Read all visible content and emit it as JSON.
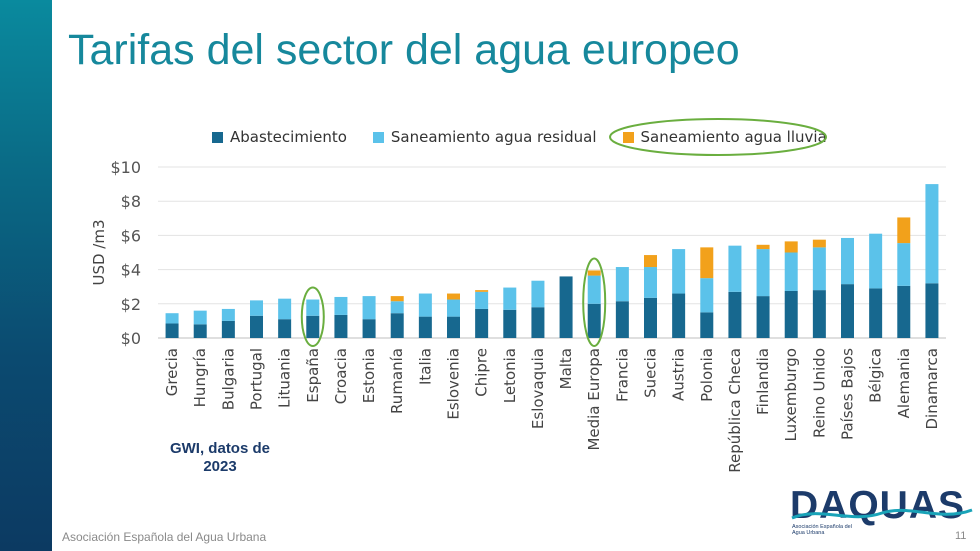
{
  "slide": {
    "title": "Tarifas del sector del agua europeo",
    "source_note": "GWI, datos de 2023",
    "footer": "Asociación Española del Agua Urbana",
    "page_number": "11",
    "logo": {
      "wordmark": "DAQUAS",
      "subtitle": "Asociación Española del Agua Urbana"
    }
  },
  "colors": {
    "abastecimiento": "#17688f",
    "residual": "#5bc2ea",
    "lluvia": "#f2a11b",
    "highlight": "#6aae3f"
  },
  "chart_data": {
    "type": "bar",
    "stacked": true,
    "title": "",
    "xlabel": "",
    "ylabel": "USD /m3",
    "ylim": [
      0,
      10
    ],
    "yticks": [
      0,
      2,
      4,
      6,
      8,
      10
    ],
    "ytick_labels": [
      "$0",
      "$2",
      "$4",
      "$6",
      "$8",
      "$10"
    ],
    "grid": true,
    "legend_position": "top",
    "categories": [
      "Grecia",
      "Hungría",
      "Bulgaria",
      "Portugal",
      "Lituania",
      "España",
      "Croacia",
      "Estonia",
      "Rumanía",
      "Italia",
      "Eslovenia",
      "Chipre",
      "Letonia",
      "Eslovaquia",
      "Malta",
      "Media Europa",
      "Francia",
      "Suecia",
      "Austria",
      "Polonia",
      "República Checa",
      "Finlandia",
      "Luxemburgo",
      "Reino Unido",
      "Países Bajos",
      "Bélgica",
      "Alemania",
      "Dinamarca"
    ],
    "series": [
      {
        "name": "Abastecimiento",
        "values": [
          0.85,
          0.8,
          1.0,
          1.3,
          1.1,
          1.3,
          1.35,
          1.1,
          1.45,
          1.25,
          1.25,
          1.7,
          1.65,
          1.8,
          3.6,
          2.0,
          2.15,
          2.35,
          2.6,
          1.5,
          2.7,
          2.45,
          2.75,
          2.8,
          3.15,
          2.9,
          3.05,
          3.2
        ]
      },
      {
        "name": "Saneamiento agua residual",
        "values": [
          0.6,
          0.8,
          0.7,
          0.9,
          1.2,
          0.95,
          1.05,
          1.35,
          0.7,
          1.35,
          1.0,
          1.0,
          1.3,
          1.55,
          0.0,
          1.65,
          2.0,
          1.8,
          2.6,
          2.0,
          2.7,
          2.75,
          2.25,
          2.5,
          2.7,
          3.2,
          2.5,
          5.8
        ]
      },
      {
        "name": "Saneamiento agua lluvia",
        "values": [
          0,
          0,
          0,
          0,
          0,
          0,
          0,
          0,
          0.3,
          0,
          0.35,
          0.1,
          0,
          0,
          0,
          0.3,
          0,
          0.7,
          0,
          1.8,
          0,
          0.25,
          0.65,
          0.45,
          0,
          0,
          1.5,
          0
        ]
      }
    ],
    "highlighted": [
      "España",
      "Media Europa",
      "Saneamiento agua lluvia"
    ]
  }
}
